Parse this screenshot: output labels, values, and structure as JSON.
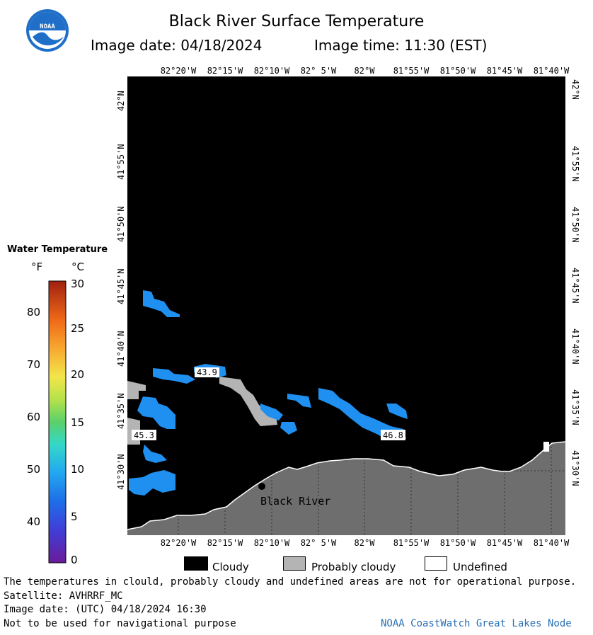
{
  "header": {
    "title": "Black River Surface Temperature",
    "image_date_label": "Image date: 04/18/2024",
    "image_time_label": "Image time: 11:30 (EST)",
    "logo_text": "NOAA"
  },
  "map": {
    "lon_labels": [
      "82°20'W",
      "82°15'W",
      "82°10'W",
      "82° 5'W",
      "82°W",
      "81°55'W",
      "81°50'W",
      "81°45'W",
      "81°40'W"
    ],
    "lat_labels": [
      "42°N",
      "41°55'N",
      "41°50'N",
      "41°45'N",
      "41°40'N",
      "41°35'N",
      "41°30'N"
    ],
    "place_label": "Black River",
    "temp_labels": [
      "43.9",
      "45.3",
      "46.8"
    ],
    "colors": {
      "cloud": "#000000",
      "land": "#6e6e6e",
      "probably_cloudy": "#b4b4b4",
      "water_temp": "#1f8ff0"
    }
  },
  "legend": {
    "title": "Water Temperature",
    "unit_f": "°F",
    "unit_c": "°C",
    "f_ticks": [
      "80",
      "70",
      "60",
      "50",
      "40"
    ],
    "c_ticks": [
      "30",
      "25",
      "20",
      "15",
      "10",
      "5",
      "0"
    ]
  },
  "key": {
    "cloudy": "Cloudy",
    "probably_cloudy": "Probably cloudy",
    "undefined": "Undefined"
  },
  "footer": {
    "disclaimer": "The temperatures in clould, probably cloudy and undefined areas are not for operational purpose.",
    "satellite": "Satellite: AVHRRF_MC",
    "utc_date": "Image date: (UTC) 04/18/2024  16:30",
    "nav_warning": "Not to be used for navigational purpose",
    "credit": "NOAA CoastWatch Great Lakes Node"
  }
}
